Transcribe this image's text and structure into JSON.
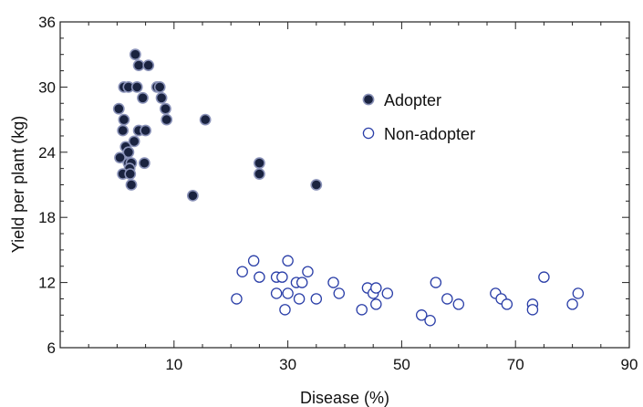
{
  "chart_data": {
    "type": "scatter",
    "xlabel": "Disease (%)",
    "ylabel": "Yield per plant (kg)",
    "xlim": [
      -10,
      90
    ],
    "ylim": [
      6,
      36
    ],
    "x_ticks": [
      10,
      30,
      50,
      70,
      90
    ],
    "y_ticks": [
      6,
      12,
      18,
      24,
      30,
      36
    ],
    "x_tick_labels": [
      "10",
      "30",
      "50",
      "70",
      "90"
    ],
    "y_tick_labels": [
      "6",
      "12",
      "18",
      "24",
      "30",
      "36"
    ],
    "grid": false,
    "legend_position": "top-right",
    "series": [
      {
        "name": "Adopter",
        "marker": "filled-circle",
        "color": "#1a2340",
        "ring_color": "#8a92b8",
        "points": [
          [
            3.2,
            33
          ],
          [
            3.8,
            32
          ],
          [
            5.5,
            32
          ],
          [
            1.2,
            30
          ],
          [
            2.0,
            30
          ],
          [
            3.5,
            30
          ],
          [
            7.0,
            30
          ],
          [
            7.5,
            30
          ],
          [
            7.8,
            29
          ],
          [
            4.5,
            29
          ],
          [
            8.5,
            28
          ],
          [
            0.3,
            28
          ],
          [
            1.2,
            27
          ],
          [
            8.7,
            27
          ],
          [
            15.5,
            27
          ],
          [
            1.0,
            26
          ],
          [
            3.8,
            26
          ],
          [
            5.0,
            26
          ],
          [
            3.0,
            25
          ],
          [
            1.5,
            24.5
          ],
          [
            2.0,
            24
          ],
          [
            0.5,
            23.5
          ],
          [
            2.0,
            23
          ],
          [
            2.5,
            23
          ],
          [
            4.8,
            23
          ],
          [
            25.0,
            23
          ],
          [
            2.2,
            22.5
          ],
          [
            1.0,
            22
          ],
          [
            2.3,
            22
          ],
          [
            25.0,
            22
          ],
          [
            2.5,
            21
          ],
          [
            35.0,
            21
          ],
          [
            13.3,
            20
          ]
        ]
      },
      {
        "name": "Non-adopter",
        "marker": "open-circle",
        "color": "#2b3fa8",
        "points": [
          [
            21.0,
            10.5
          ],
          [
            22.0,
            13.0
          ],
          [
            24.0,
            14.0
          ],
          [
            25.0,
            12.5
          ],
          [
            28.0,
            11.0
          ],
          [
            28.0,
            12.5
          ],
          [
            29.0,
            12.5
          ],
          [
            29.5,
            9.5
          ],
          [
            30.0,
            11.0
          ],
          [
            30.0,
            14.0
          ],
          [
            31.5,
            12.0
          ],
          [
            32.0,
            10.5
          ],
          [
            32.5,
            12.0
          ],
          [
            33.5,
            13.0
          ],
          [
            35.0,
            10.5
          ],
          [
            38.0,
            12.0
          ],
          [
            39.0,
            11.0
          ],
          [
            43.0,
            9.5
          ],
          [
            44.0,
            11.5
          ],
          [
            45.0,
            11.0
          ],
          [
            45.5,
            11.5
          ],
          [
            45.5,
            10.0
          ],
          [
            47.5,
            11.0
          ],
          [
            53.5,
            9.0
          ],
          [
            55.0,
            8.5
          ],
          [
            56.0,
            12.0
          ],
          [
            58.0,
            10.5
          ],
          [
            60.0,
            10.0
          ],
          [
            66.5,
            11.0
          ],
          [
            67.5,
            10.5
          ],
          [
            68.5,
            10.0
          ],
          [
            73.0,
            10.0
          ],
          [
            73.0,
            9.5
          ],
          [
            75.0,
            12.5
          ],
          [
            80.0,
            10.0
          ],
          [
            81.0,
            11.0
          ]
        ]
      }
    ]
  }
}
